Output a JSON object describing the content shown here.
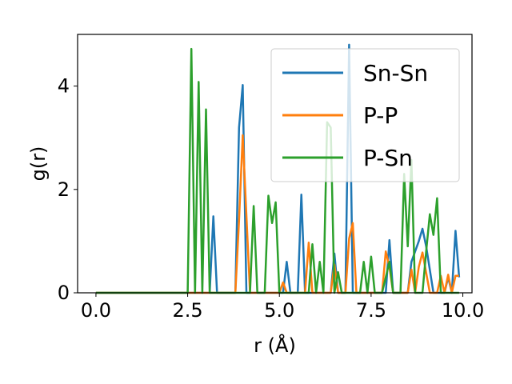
{
  "chart_data": {
    "type": "line",
    "xlabel": "r (Å)",
    "ylabel": "g(r)",
    "xlim": [
      -0.5,
      10.25
    ],
    "ylim": [
      0,
      5.0
    ],
    "xticks": [
      0.0,
      2.5,
      5.0,
      7.5,
      10.0
    ],
    "xtick_labels": [
      "0.0",
      "2.5",
      "5.0",
      "7.5",
      "10.0"
    ],
    "yticks": [
      0,
      2,
      4
    ],
    "ytick_labels": [
      "0",
      "2",
      "4"
    ],
    "legend_position": "top-right",
    "grid": false,
    "series": [
      {
        "name": "Sn-Sn",
        "color": "#1f77b4",
        "x": [
          0.0,
          3.1,
          3.2,
          3.3,
          3.4,
          3.8,
          3.9,
          4.0,
          4.1,
          4.2,
          5.1,
          5.2,
          5.3,
          5.5,
          5.6,
          5.7,
          6.4,
          6.5,
          6.6,
          6.8,
          6.9,
          7.0,
          7.2,
          7.9,
          8.0,
          8.1,
          8.3,
          8.5,
          8.6,
          8.8,
          8.9,
          9.0,
          9.2,
          9.3,
          9.5,
          9.6,
          9.7,
          9.8,
          9.9
        ],
        "y": [
          0.0,
          0.0,
          1.48,
          0.0,
          0.0,
          0.0,
          3.2,
          4.02,
          0.0,
          0.0,
          0.0,
          0.6,
          0.0,
          0.0,
          1.9,
          0.0,
          0.0,
          0.76,
          0.0,
          0.0,
          4.8,
          0.0,
          0.0,
          0.0,
          1.02,
          0.0,
          0.0,
          0.0,
          0.6,
          1.0,
          1.24,
          0.9,
          0.0,
          0.0,
          0.0,
          0.3,
          0.0,
          1.2,
          0.3
        ]
      },
      {
        "name": "P-P",
        "color": "#ff7f0e",
        "x": [
          0.0,
          3.8,
          3.9,
          4.0,
          4.1,
          4.2,
          5.0,
          5.1,
          5.2,
          5.7,
          5.8,
          5.9,
          6.0,
          6.4,
          6.5,
          6.6,
          6.8,
          6.9,
          7.0,
          7.1,
          7.8,
          7.9,
          8.0,
          8.1,
          8.3,
          8.5,
          8.6,
          8.7,
          8.8,
          8.9,
          9.1,
          9.3,
          9.4,
          9.5,
          9.6,
          9.7,
          9.8,
          9.9
        ],
        "y": [
          0.0,
          0.0,
          1.4,
          3.05,
          1.5,
          0.0,
          0.0,
          0.2,
          0.0,
          0.0,
          0.97,
          0.0,
          0.0,
          0.0,
          0.55,
          0.0,
          0.0,
          1.05,
          1.35,
          0.0,
          0.0,
          0.8,
          0.5,
          0.0,
          0.0,
          0.0,
          0.45,
          0.0,
          0.5,
          0.78,
          0.0,
          0.0,
          0.33,
          0.0,
          0.35,
          0.0,
          0.33,
          0.33
        ]
      },
      {
        "name": "P-Sn",
        "color": "#2ca02c",
        "x": [
          0.0,
          2.5,
          2.6,
          2.7,
          2.8,
          2.9,
          3.0,
          3.1,
          4.2,
          4.3,
          4.4,
          4.6,
          4.7,
          4.8,
          4.9,
          5.0,
          5.2,
          5.3,
          5.8,
          5.9,
          6.0,
          6.1,
          6.2,
          6.3,
          6.4,
          6.5,
          6.6,
          6.7,
          6.8,
          7.2,
          7.3,
          7.4,
          7.5,
          7.6,
          7.8,
          8.0,
          8.1,
          8.2,
          8.3,
          8.4,
          8.5,
          8.6,
          8.7,
          8.9,
          9.0,
          9.1,
          9.2,
          9.3,
          9.4,
          9.5,
          9.6,
          9.7,
          9.8,
          9.9
        ],
        "y": [
          0.0,
          0.0,
          4.72,
          0.0,
          4.08,
          0.0,
          3.55,
          0.0,
          0.0,
          1.68,
          0.0,
          0.0,
          1.88,
          1.35,
          1.75,
          0.0,
          0.0,
          0.0,
          0.0,
          0.94,
          0.0,
          0.6,
          0.0,
          3.3,
          3.2,
          0.0,
          0.4,
          0.0,
          0.0,
          0.0,
          0.6,
          0.0,
          0.7,
          0.0,
          0.0,
          0.6,
          0.0,
          0.0,
          0.0,
          2.3,
          0.9,
          2.57,
          0.0,
          0.0,
          0.8,
          1.52,
          1.12,
          1.83,
          0.0,
          0.0,
          0.0,
          0.0,
          0.0,
          0.0
        ]
      }
    ]
  }
}
